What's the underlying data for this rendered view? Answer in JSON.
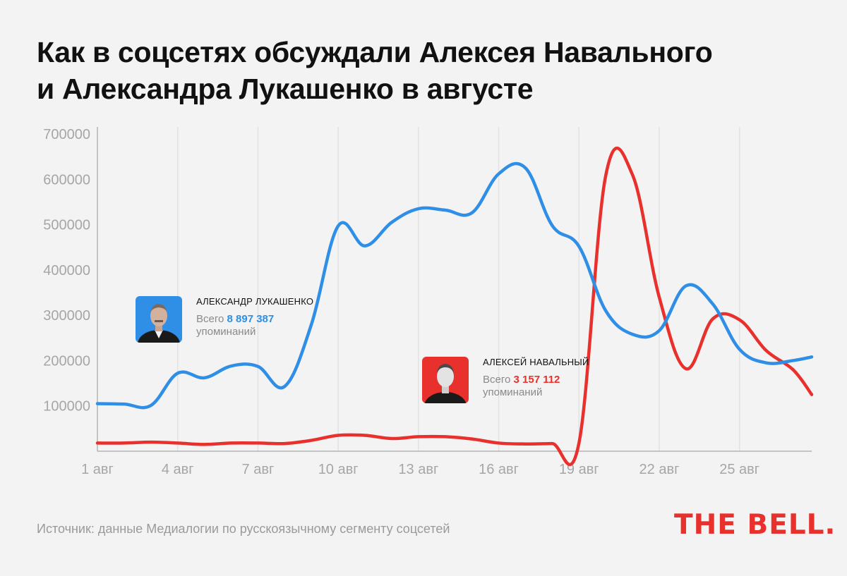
{
  "title_lines": [
    "Как в соцсетях обсуждали Алексея Навального",
    "и Александра Лукашенко в августе"
  ],
  "source": "Источник: данные Медиалогии по русскоязычному сегменту соцсетей",
  "logo": "THE BELL.",
  "legend": {
    "lukashenko": {
      "name": "АЛЕКСАНДР ЛУКАШЕНКО",
      "total_prefix": "Всего ",
      "total_value": "8 897 387",
      "total_suffix": "упоминаний",
      "color": "#2f8ee6",
      "photo_bg": "#2f8ee6"
    },
    "navalny": {
      "name": "АЛЕКСЕЙ НАВАЛЬНЫЙ",
      "total_prefix": "Всего ",
      "total_value": "3 157 112",
      "total_suffix": "упоминаний",
      "color": "#e8312c",
      "photo_bg": "#e8312c"
    }
  },
  "chart_data": {
    "type": "line",
    "title": "Как в соцсетях обсуждали Алексея Навального и Александра Лукашенко в августе",
    "ylim": [
      0,
      700000
    ],
    "yticks": [
      100000,
      200000,
      300000,
      400000,
      500000,
      600000,
      700000
    ],
    "ytick_labels": [
      "100000",
      "200000",
      "300000",
      "400000",
      "500000",
      "600000",
      "700000"
    ],
    "xlim": [
      1,
      27.7
    ],
    "xticks": [
      1,
      4,
      7,
      10,
      13,
      16,
      19,
      22,
      25
    ],
    "xtick_labels": [
      "1 авг",
      "4 авг",
      "7 авг",
      "10 авг",
      "13 авг",
      "16 авг",
      "19 авг",
      "22 авг",
      "25 авг"
    ],
    "grid": "vertical",
    "x": [
      1,
      2,
      3,
      4,
      5,
      6,
      7,
      8,
      9,
      10,
      11,
      12,
      13,
      14,
      15,
      16,
      17,
      18,
      19,
      20,
      21,
      22,
      23,
      24,
      25,
      26,
      27,
      27.7
    ],
    "series": [
      {
        "name": "АЛЕКСАНДР ЛУКАШЕНКО",
        "color": "#2f8ee6",
        "values": [
          105000,
          104000,
          101000,
          172000,
          162000,
          188000,
          187000,
          143000,
          280000,
          497000,
          453000,
          505000,
          535000,
          532000,
          526000,
          612000,
          625000,
          498000,
          452000,
          310000,
          258000,
          266000,
          365000,
          325000,
          225000,
          195000,
          200000,
          208000
        ]
      },
      {
        "name": "АЛЕКСЕЙ НАВАЛЬНЫЙ",
        "color": "#e8312c",
        "values": [
          18000,
          18000,
          20000,
          18000,
          15000,
          18000,
          18000,
          17000,
          24000,
          35000,
          35000,
          28000,
          32000,
          32000,
          27000,
          18000,
          16000,
          17000,
          18000,
          608000,
          610000,
          340000,
          182000,
          292000,
          290000,
          222000,
          180000,
          125000
        ]
      }
    ]
  }
}
